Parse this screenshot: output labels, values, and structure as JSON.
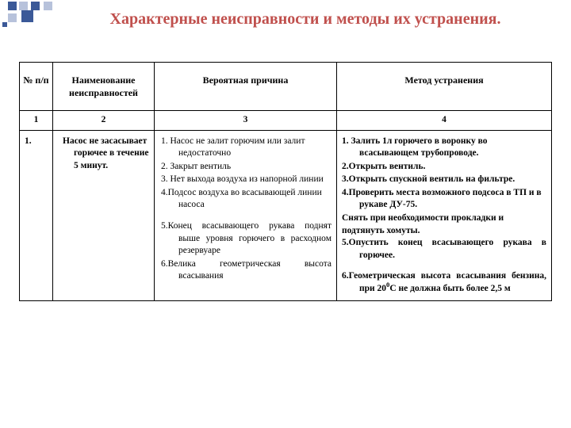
{
  "colors": {
    "title": "#C0504D",
    "text": "#000000",
    "border": "#000000",
    "bg": "#ffffff",
    "deco_primary": "#3b5998",
    "deco_secondary": "#b7c2db"
  },
  "fonts": {
    "title_size_pt": 15,
    "body_size_pt": 9,
    "family": "Times New Roman"
  },
  "title": "Характерные неисправности и методы их устранения",
  "title_trailing_dot": ".",
  "table": {
    "columns": [
      "№ п/п",
      "Наименование неисправностей",
      "Вероятная причина",
      "Метод устранения"
    ],
    "col_numbers": [
      "1",
      "2",
      "3",
      "4"
    ],
    "rows": [
      {
        "num": "1.",
        "name": "Насос не засасывает горючее в течение 5 минут.",
        "causes": [
          "1. Насос не залит горючим или залит недостаточно",
          "2. Закрыт вентиль",
          "3. Нет выхода воздуха из напорной линии",
          "4.Подсос воздуха во всасывающей линии насоса",
          "",
          "5.Конец всасывающего рукава поднят выше уровня горючего в расходном резервуаре",
          "6.Велика геометрическая высота всасывания"
        ],
        "methods": [
          "1. Залить 1л горючего в воронку во всасывающем трубопроводе.",
          "2.Открыть вентиль.",
          "3.Открыть спускной вентиль на фильтре.",
          "4.Проверить места возможного подсоса в ТП и в рукаве ДУ-75.",
          "Снять при необходимости прокладки и подтянуть хомуты.",
          "5.Опустить конец всасывающего рукава в горючее.",
          "",
          "6.Геометрическая высота всасывания бензина, при 20⁰С не должна быть более 2,5 м"
        ]
      }
    ]
  }
}
